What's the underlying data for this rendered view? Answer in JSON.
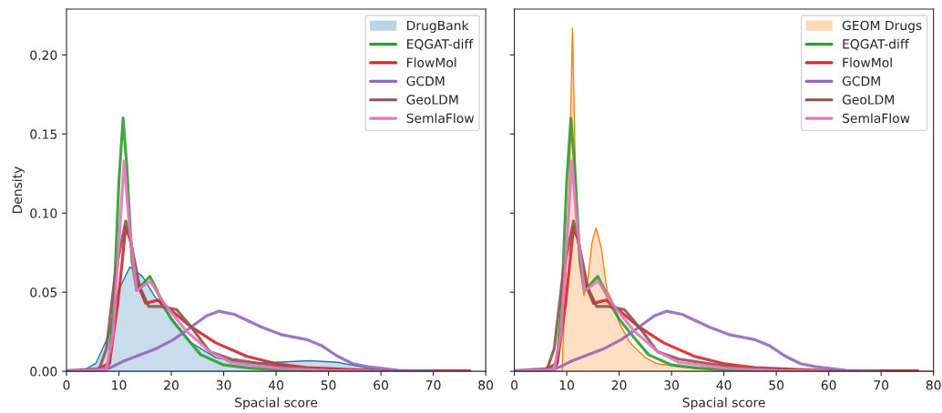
{
  "chart_data": [
    {
      "type": "line",
      "xlabel": "Spacial score",
      "ylabel": "Density",
      "xlim": [
        0,
        80
      ],
      "ylim": [
        0,
        0.229
      ],
      "xticks": [
        0,
        10,
        20,
        30,
        40,
        50,
        60,
        70,
        80
      ],
      "yticks": [
        {
          "value": 0,
          "label": "0.00"
        },
        {
          "value": 0.05,
          "label": "0.05"
        },
        {
          "value": 0.1,
          "label": "0.10"
        },
        {
          "value": 0.15,
          "label": "0.15"
        },
        {
          "value": 0.2,
          "label": "0.20"
        }
      ],
      "legend": "top right",
      "grid": false,
      "series": [
        {
          "name": "DrugBank",
          "type": "area",
          "color": "#1f77b4",
          "x": [
            0,
            3,
            5.6,
            8.2,
            9.9,
            12.1,
            14.5,
            16.9,
            20.4,
            23.8,
            28.5,
            34.3,
            40,
            46.4,
            51.7,
            57.5,
            61,
            70
          ],
          "values": [
            0,
            0,
            0.005,
            0.024,
            0.051,
            0.066,
            0.06,
            0.047,
            0.032,
            0.018,
            0.0086,
            0.0048,
            0.0057,
            0.0067,
            0.0057,
            0.002,
            0.0005,
            0
          ]
        },
        {
          "name": "EQGAT-diff",
          "color": "#2ca02c",
          "x": [
            0,
            7,
            8,
            9,
            10,
            10.8,
            11.5,
            12.5,
            13.4,
            14.5,
            15.9,
            17,
            18.6,
            20,
            22.7,
            25.6,
            30,
            35,
            40,
            50
          ],
          "values": [
            0,
            0,
            0.002,
            0.04,
            0.12,
            0.16,
            0.13,
            0.07,
            0.051,
            0.055,
            0.06,
            0.053,
            0.041,
            0.033,
            0.022,
            0.0105,
            0.004,
            0.002,
            0.001,
            0.0003
          ]
        },
        {
          "name": "FlowMol",
          "color": "#d62728",
          "x": [
            0,
            5,
            8.2,
            9.8,
            11.3,
            12.2,
            13.4,
            15.1,
            17.5,
            19.8,
            23.8,
            28.5,
            34.3,
            40,
            45.9,
            55,
            60,
            70,
            77
          ],
          "values": [
            0,
            0,
            0.005,
            0.043,
            0.091,
            0.083,
            0.057,
            0.043,
            0.045,
            0.039,
            0.028,
            0.018,
            0.0096,
            0.0048,
            0.0023,
            0.001,
            0.0005,
            0.0003,
            0.0003
          ]
        },
        {
          "name": "GCDM",
          "color": "#9467bd",
          "x": [
            0,
            8.2,
            11.1,
            16.9,
            20.4,
            23.8,
            26.7,
            29.1,
            32,
            37.2,
            41.2,
            45.9,
            48.8,
            51.7,
            54.6,
            57.5,
            63.3,
            70
          ],
          "values": [
            0.0005,
            0.002,
            0.0067,
            0.014,
            0.02,
            0.028,
            0.035,
            0.038,
            0.036,
            0.028,
            0.023,
            0.02,
            0.016,
            0.0096,
            0.0048,
            0.0029,
            0.0006,
            0
          ]
        },
        {
          "name": "GeoLDM",
          "color": "#8c564b",
          "x": [
            0,
            6.2,
            7.6,
            9.3,
            11.3,
            12.5,
            14,
            15.7,
            18,
            21,
            23.8,
            27.3,
            31.4,
            37.2,
            43,
            50,
            60
          ],
          "values": [
            0,
            0.001,
            0.014,
            0.062,
            0.095,
            0.078,
            0.053,
            0.041,
            0.041,
            0.039,
            0.028,
            0.0125,
            0.0077,
            0.0048,
            0.002,
            0.0008,
            0
          ]
        },
        {
          "name": "SemlaFlow",
          "color": "#e377c2",
          "x": [
            0,
            7.6,
            8.9,
            10.2,
            11,
            12,
            13.4,
            16,
            18.6,
            22.7,
            27.3,
            31.4,
            40,
            50,
            60
          ],
          "values": [
            0,
            0.001,
            0.024,
            0.091,
            0.133,
            0.091,
            0.051,
            0.057,
            0.043,
            0.026,
            0.0125,
            0.0057,
            0.002,
            0.0005,
            0
          ]
        }
      ]
    },
    {
      "type": "line",
      "xlabel": "Spacial score",
      "xlim": [
        0,
        80
      ],
      "ylim": [
        0,
        0.229
      ],
      "xticks": [
        0,
        10,
        20,
        30,
        40,
        50,
        60,
        70,
        80
      ],
      "yticks": [
        {
          "value": 0,
          "label": null
        },
        {
          "value": 0.05,
          "label": null
        },
        {
          "value": 0.1,
          "label": null
        },
        {
          "value": 0.15,
          "label": null
        },
        {
          "value": 0.2,
          "label": null
        }
      ],
      "tick_labels": "x",
      "legend": "top right",
      "grid": false,
      "series": [
        {
          "name": "GEOM Drugs",
          "type": "area",
          "color": "#ff7f0e",
          "x": [
            0,
            9.1,
            9.6,
            10.5,
            11.1,
            11.7,
            12.5,
            13.3,
            14,
            14.8,
            15.6,
            16.6,
            17.7,
            18.9,
            20.1,
            22.1,
            25,
            27.3,
            31.4,
            40,
            50,
            80
          ],
          "values": [
            0,
            0,
            0.043,
            0.12,
            0.217,
            0.12,
            0.066,
            0.048,
            0.057,
            0.081,
            0.0906,
            0.078,
            0.051,
            0.043,
            0.03,
            0.018,
            0.0086,
            0.0048,
            0.0029,
            0.001,
            0.0003,
            0
          ]
        },
        {
          "name": "EQGAT-diff",
          "color": "#2ca02c",
          "x": [
            0,
            7,
            8,
            9,
            10,
            10.8,
            11.5,
            12.5,
            13.4,
            14.5,
            15.9,
            17,
            18.6,
            20,
            22.7,
            25.6,
            30,
            35,
            40,
            50
          ],
          "values": [
            0,
            0,
            0.002,
            0.04,
            0.12,
            0.16,
            0.13,
            0.07,
            0.051,
            0.055,
            0.06,
            0.053,
            0.041,
            0.033,
            0.022,
            0.0105,
            0.004,
            0.002,
            0.001,
            0.0003
          ]
        },
        {
          "name": "FlowMol",
          "color": "#d62728",
          "x": [
            0,
            5,
            8.2,
            9.8,
            11.3,
            12.2,
            13.4,
            15.1,
            17.5,
            19.8,
            23.8,
            28.5,
            34.3,
            40,
            45.9,
            55,
            60,
            70,
            77
          ],
          "values": [
            0,
            0,
            0.005,
            0.043,
            0.091,
            0.083,
            0.057,
            0.043,
            0.045,
            0.039,
            0.028,
            0.018,
            0.0096,
            0.0048,
            0.0023,
            0.001,
            0.0005,
            0.0003,
            0.0003
          ]
        },
        {
          "name": "GCDM",
          "color": "#9467bd",
          "x": [
            0,
            8.2,
            11.1,
            16.9,
            20.4,
            23.8,
            26.7,
            29.1,
            32,
            37.2,
            41.2,
            45.9,
            48.8,
            51.7,
            54.6,
            57.5,
            63.3,
            70
          ],
          "values": [
            0.0005,
            0.002,
            0.0067,
            0.014,
            0.02,
            0.028,
            0.035,
            0.038,
            0.036,
            0.028,
            0.023,
            0.02,
            0.016,
            0.0096,
            0.0048,
            0.0029,
            0.0006,
            0
          ]
        },
        {
          "name": "GeoLDM",
          "color": "#8c564b",
          "x": [
            0,
            6.2,
            7.6,
            9.3,
            11.3,
            12.5,
            14,
            15.7,
            18,
            21,
            23.8,
            27.3,
            31.4,
            37.2,
            43,
            50,
            60
          ],
          "values": [
            0,
            0.001,
            0.014,
            0.062,
            0.095,
            0.078,
            0.053,
            0.041,
            0.041,
            0.039,
            0.028,
            0.0125,
            0.0077,
            0.0048,
            0.002,
            0.0008,
            0
          ]
        },
        {
          "name": "SemlaFlow",
          "color": "#e377c2",
          "x": [
            0,
            7.6,
            8.9,
            10.2,
            11,
            12,
            13.4,
            16,
            18.6,
            22.7,
            27.3,
            31.4,
            40,
            50,
            60
          ],
          "values": [
            0,
            0.001,
            0.024,
            0.091,
            0.133,
            0.091,
            0.051,
            0.057,
            0.043,
            0.026,
            0.0125,
            0.0057,
            0.002,
            0.0005,
            0
          ]
        }
      ]
    }
  ]
}
